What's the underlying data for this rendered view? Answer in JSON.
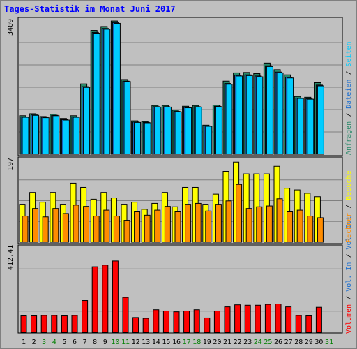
{
  "title": "Tages-Statistik im Monat Juni 2017",
  "colors": {
    "anfragen": "#2a8a6a",
    "dateien": "#1c6fd0",
    "seiten": "#00ccff",
    "besuche": "#ffff00",
    "rechner": "#ff8c00",
    "vol_out": "#1c6fd0",
    "vol_in": "#1c6fd0",
    "volumen": "#ff0000",
    "weekend_label": "#008000"
  },
  "chart_data": [
    {
      "type": "bar",
      "panel": "top",
      "ymax_label": "3409",
      "ylim": [
        0,
        3409
      ],
      "x": [
        "1",
        "2",
        "3",
        "4",
        "5",
        "6",
        "7",
        "8",
        "9",
        "10",
        "11",
        "12",
        "13",
        "14",
        "15",
        "16",
        "17",
        "18",
        "19",
        "20",
        "21",
        "22",
        "23",
        "24",
        "25",
        "26",
        "27",
        "28",
        "29",
        "30",
        "31"
      ],
      "series": [
        {
          "name": "Anfragen",
          "values": [
            980,
            1030,
            960,
            1020,
            910,
            980,
            1790,
            3150,
            3250,
            3390,
            1900,
            850,
            830,
            1240,
            1240,
            1120,
            1220,
            1240,
            740,
            1250,
            1860,
            2070,
            2080,
            2050,
            2320,
            2150,
            2020,
            1470,
            1450,
            1820,
            0
          ]
        },
        {
          "name": "Dateien",
          "values": [
            950,
            1000,
            940,
            990,
            880,
            950,
            1720,
            3100,
            3200,
            3350,
            1860,
            820,
            810,
            1210,
            1210,
            1090,
            1190,
            1210,
            720,
            1220,
            1800,
            2010,
            2020,
            1990,
            2250,
            2090,
            1960,
            1430,
            1410,
            1760,
            0
          ]
        },
        {
          "name": "Seiten",
          "values": [
            940,
            990,
            930,
            980,
            870,
            940,
            1700,
            3080,
            3180,
            3330,
            1850,
            810,
            800,
            1200,
            1200,
            1080,
            1180,
            1200,
            710,
            1210,
            1780,
            1990,
            2000,
            1970,
            2230,
            2070,
            1940,
            1420,
            1400,
            1740,
            0
          ]
        }
      ]
    },
    {
      "type": "bar",
      "panel": "middle",
      "ymax_label": "197",
      "ylim": [
        0,
        197
      ],
      "x": [
        "1",
        "2",
        "3",
        "4",
        "5",
        "6",
        "7",
        "8",
        "9",
        "10",
        "11",
        "12",
        "13",
        "14",
        "15",
        "16",
        "17",
        "18",
        "19",
        "20",
        "21",
        "22",
        "23",
        "24",
        "25",
        "26",
        "27",
        "28",
        "29",
        "30",
        "31"
      ],
      "series": [
        {
          "name": "Besuche",
          "values": [
            90,
            118,
            95,
            118,
            90,
            140,
            130,
            102,
            118,
            105,
            90,
            95,
            78,
            92,
            118,
            84,
            130,
            130,
            90,
            114,
            168,
            190,
            162,
            162,
            162,
            180,
            128,
            124,
            116,
            108,
            0
          ]
        },
        {
          "name": "Rechner",
          "values": [
            62,
            80,
            60,
            80,
            68,
            88,
            85,
            62,
            76,
            62,
            52,
            72,
            64,
            76,
            85,
            72,
            90,
            92,
            74,
            90,
            98,
            137,
            80,
            84,
            86,
            103,
            72,
            76,
            62,
            58,
            0
          ]
        }
      ]
    },
    {
      "type": "bar",
      "panel": "bottom",
      "ymax_label": "412.41",
      "ylim": [
        0,
        412.41
      ],
      "x": [
        "1",
        "2",
        "3",
        "4",
        "5",
        "6",
        "7",
        "8",
        "9",
        "10",
        "11",
        "12",
        "13",
        "14",
        "15",
        "16",
        "17",
        "18",
        "19",
        "20",
        "21",
        "22",
        "23",
        "24",
        "25",
        "26",
        "27",
        "28",
        "29",
        "30",
        "31"
      ],
      "series": [
        {
          "name": "Volumen",
          "values": [
            80,
            80,
            82,
            82,
            80,
            82,
            155,
            320,
            328,
            348,
            170,
            72,
            68,
            110,
            104,
            100,
            104,
            110,
            70,
            104,
            124,
            134,
            132,
            132,
            136,
            138,
            124,
            82,
            80,
            122,
            0
          ]
        }
      ]
    }
  ],
  "right_labels": {
    "top": [
      {
        "text": "Anfragen",
        "color": "#2a8a6a"
      },
      {
        "text": " / ",
        "color": "#000000"
      },
      {
        "text": "Dateien",
        "color": "#1c6fd0"
      },
      {
        "text": " / ",
        "color": "#000000"
      },
      {
        "text": "Seiten",
        "color": "#00ccff"
      }
    ],
    "middle": [
      {
        "text": "Rechner",
        "color": "#ff8c00"
      },
      {
        "text": " / ",
        "color": "#000000"
      },
      {
        "text": "Besuche",
        "color": "#ffff00"
      }
    ],
    "bottom": [
      {
        "text": "Volumen",
        "color": "#ff0000"
      },
      {
        "text": " / ",
        "color": "#000000"
      },
      {
        "text": "Vol. In",
        "color": "#1c6fd0"
      },
      {
        "text": " / ",
        "color": "#000000"
      },
      {
        "text": "Vol. Out",
        "color": "#1c6fd0"
      }
    ]
  },
  "weekend_days": [
    "3",
    "4",
    "10",
    "11",
    "17",
    "18",
    "24",
    "25",
    "31"
  ]
}
